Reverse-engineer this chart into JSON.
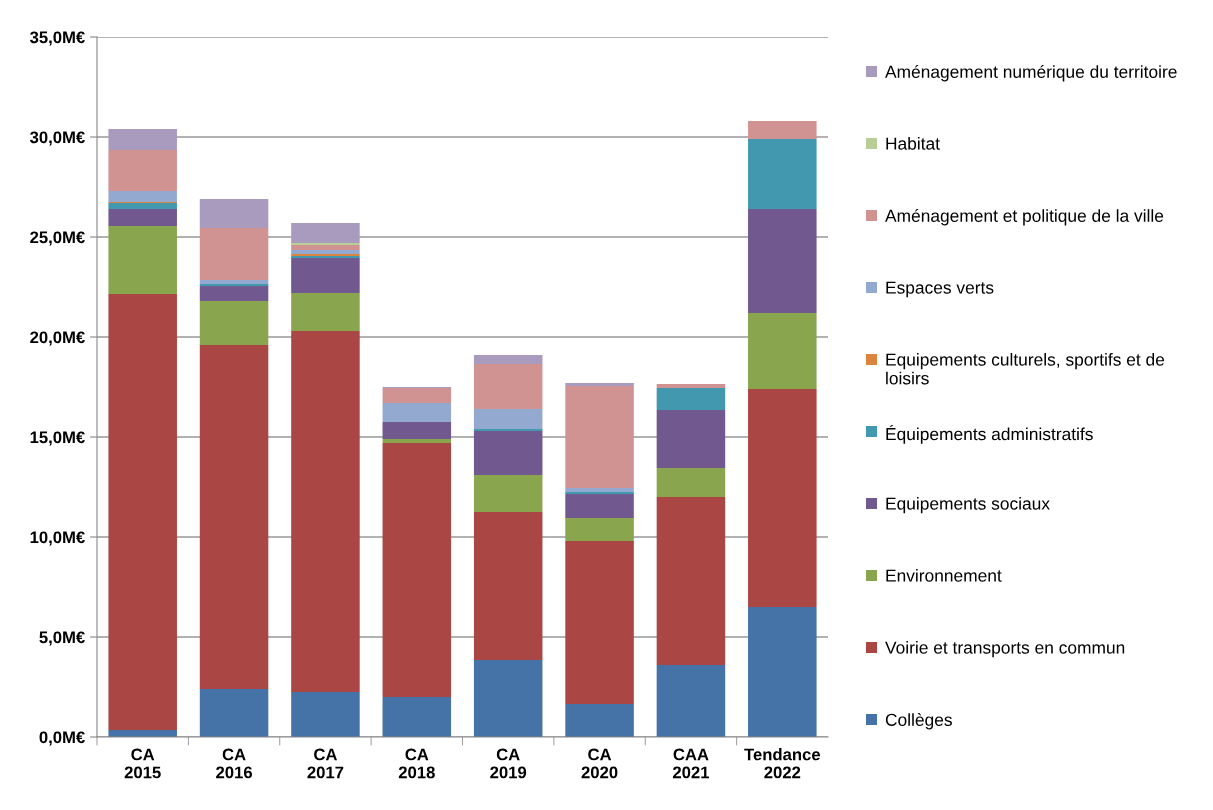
{
  "chart_data": {
    "type": "bar",
    "stacked": true,
    "categories": [
      "CA\n2015",
      "CA\n2016",
      "CA\n2017",
      "CA\n2018",
      "CA\n2019",
      "CA\n2020",
      "CAA\n2021",
      "Tendance\n2022"
    ],
    "series": [
      {
        "name": "Collèges",
        "color": "#4572a7",
        "values": [
          0.35,
          2.4,
          2.25,
          2.0,
          3.85,
          1.65,
          3.6,
          6.5
        ]
      },
      {
        "name": "Voirie et transports en commun",
        "color": "#aa4643",
        "values": [
          21.8,
          17.2,
          18.05,
          12.7,
          7.4,
          8.15,
          8.4,
          10.9
        ]
      },
      {
        "name": "Environnement",
        "color": "#89a54e",
        "values": [
          3.4,
          2.2,
          1.9,
          0.2,
          1.85,
          1.15,
          1.45,
          3.8
        ]
      },
      {
        "name": "Equipements sociaux",
        "color": "#71588f",
        "values": [
          0.85,
          0.75,
          1.75,
          0.85,
          2.2,
          1.2,
          2.9,
          5.2
        ]
      },
      {
        "name": "Équipements administratifs",
        "color": "#4198af",
        "values": [
          0.3,
          0.1,
          0.1,
          0,
          0.1,
          0.1,
          1.1,
          3.5
        ]
      },
      {
        "name": "Equipements culturels, sportifs et de loisirs",
        "color": "#db843d",
        "values": [
          0.05,
          0,
          0.1,
          0,
          0,
          0,
          0,
          0
        ]
      },
      {
        "name": "Espaces verts",
        "color": "#93a9cf",
        "values": [
          0.55,
          0.2,
          0.2,
          0.95,
          1.0,
          0.2,
          0,
          0
        ]
      },
      {
        "name": "Aménagement et politique de la ville",
        "color": "#d19392",
        "values": [
          2.05,
          2.6,
          0.25,
          0.75,
          2.25,
          5.1,
          0.2,
          0.9
        ]
      },
      {
        "name": "Habitat",
        "color": "#b9cd96",
        "values": [
          0,
          0,
          0.1,
          0,
          0,
          0,
          0,
          0
        ]
      },
      {
        "name": "Aménagement numérique du territoire",
        "color": "#a99bbd",
        "values": [
          1.05,
          1.45,
          1.0,
          0.05,
          0.45,
          0.15,
          0,
          0
        ]
      }
    ],
    "ylim": [
      0,
      35
    ],
    "yticks": [
      {
        "value": 0,
        "label": "0,0M€"
      },
      {
        "value": 5,
        "label": "5,0M€"
      },
      {
        "value": 10,
        "label": "10,0M€"
      },
      {
        "value": 15,
        "label": "15,0M€"
      },
      {
        "value": 20,
        "label": "20,0M€"
      },
      {
        "value": 25,
        "label": "25,0M€"
      },
      {
        "value": 30,
        "label": "30,0M€"
      },
      {
        "value": 35,
        "label": "35,0M€"
      }
    ],
    "grid": "y",
    "legend": "right"
  }
}
